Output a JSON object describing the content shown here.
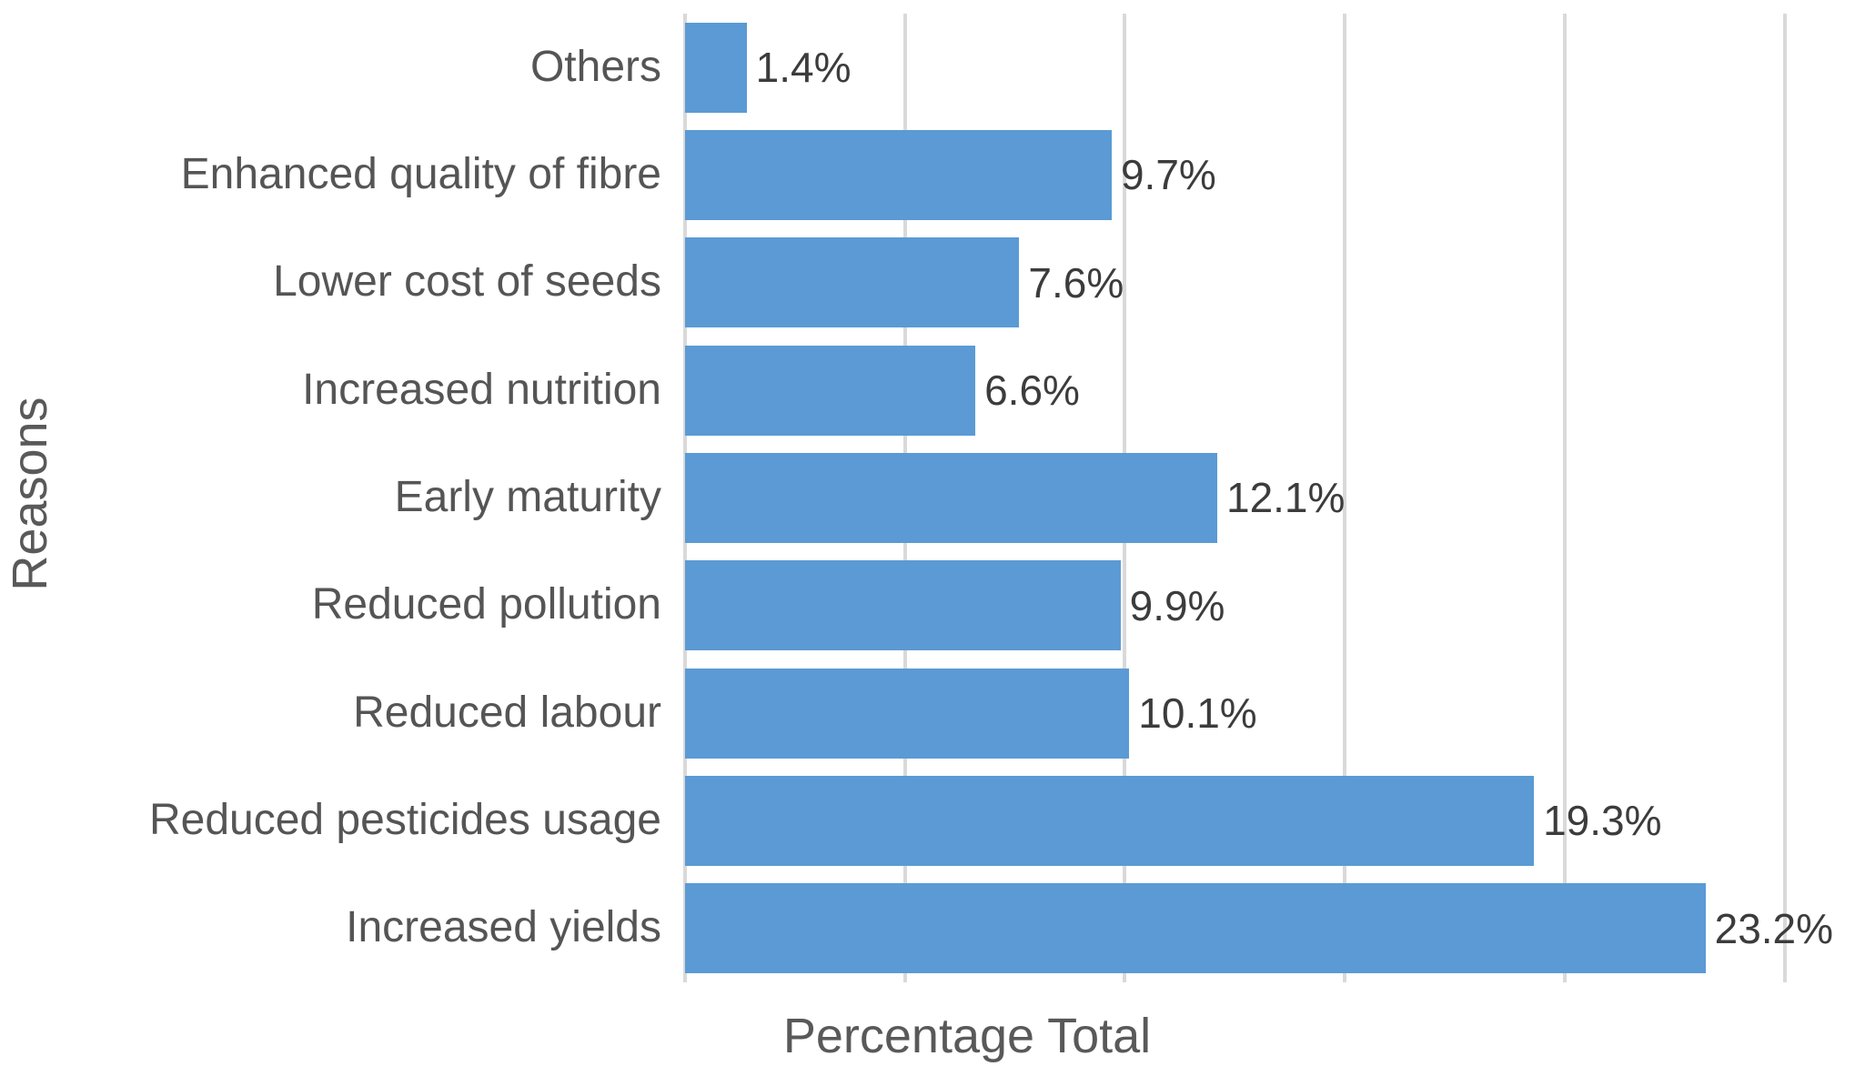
{
  "chart_data": {
    "type": "bar",
    "orientation": "horizontal",
    "title": "",
    "xlabel": "Percentage Total",
    "ylabel": "Reasons",
    "categories": [
      "Others",
      "Enhanced quality of fibre",
      "Lower cost of seeds",
      "Increased nutrition",
      "Early maturity",
      "Reduced pollution",
      "Reduced labour",
      "Reduced pesticides usage",
      "Increased yields"
    ],
    "values": [
      1.4,
      9.7,
      7.6,
      6.6,
      12.1,
      9.9,
      10.1,
      19.3,
      23.2
    ],
    "value_labels": [
      "1.4%",
      "9.7%",
      "7.6%",
      "6.6%",
      "12.1%",
      "9.9%",
      "10.1%",
      "19.3%",
      "23.2%"
    ],
    "xlim": [
      0,
      26.6
    ],
    "gridlines_x": [
      0,
      5,
      10,
      15,
      20,
      25
    ],
    "grid": true,
    "legend": false,
    "style": {
      "bar_color": "#5B9AD4",
      "grid_color": "#D9D9D9",
      "category_label_color": "#555555",
      "value_label_color": "#3C3C3C",
      "axis_title_color": "#595959",
      "background_color": "#FFFFFF"
    }
  }
}
